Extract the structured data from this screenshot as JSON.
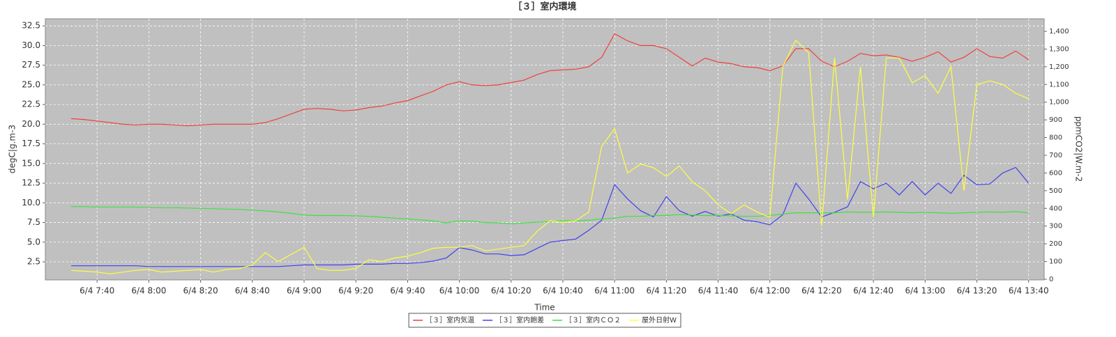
{
  "chart_data": {
    "type": "line",
    "title": "［３］室内環境",
    "xlabel": "Time",
    "ylabel": "degC|g.m-3",
    "y2label": "ppmCO2|W.m-2",
    "grid": true,
    "legend": "bottom",
    "x": [
      "6/4 7:30",
      "6/4 7:35",
      "6/4 7:40",
      "6/4 7:45",
      "6/4 7:50",
      "6/4 7:55",
      "6/4 8:00",
      "6/4 8:05",
      "6/4 8:10",
      "6/4 8:15",
      "6/4 8:20",
      "6/4 8:25",
      "6/4 8:30",
      "6/4 8:35",
      "6/4 8:40",
      "6/4 8:45",
      "6/4 8:50",
      "6/4 8:55",
      "6/4 9:00",
      "6/4 9:05",
      "6/4 9:10",
      "6/4 9:15",
      "6/4 9:20",
      "6/4 9:25",
      "6/4 9:30",
      "6/4 9:35",
      "6/4 9:40",
      "6/4 9:45",
      "6/4 9:50",
      "6/4 9:55",
      "6/4 10:00",
      "6/4 10:05",
      "6/4 10:10",
      "6/4 10:15",
      "6/4 10:20",
      "6/4 10:25",
      "6/4 10:30",
      "6/4 10:35",
      "6/4 10:40",
      "6/4 10:45",
      "6/4 10:50",
      "6/4 10:55",
      "6/4 11:00",
      "6/4 11:05",
      "6/4 11:10",
      "6/4 11:15",
      "6/4 11:20",
      "6/4 11:25",
      "6/4 11:30",
      "6/4 11:35",
      "6/4 11:40",
      "6/4 11:45",
      "6/4 11:50",
      "6/4 11:55",
      "6/4 12:00",
      "6/4 12:05",
      "6/4 12:10",
      "6/4 12:15",
      "6/4 12:20",
      "6/4 12:25",
      "6/4 12:30",
      "6/4 12:35",
      "6/4 12:40",
      "6/4 12:45",
      "6/4 12:50",
      "6/4 12:55",
      "6/4 13:00",
      "6/4 13:05",
      "6/4 13:10",
      "6/4 13:15",
      "6/4 13:20",
      "6/4 13:25",
      "6/4 13:30",
      "6/4 13:35",
      "6/4 13:40"
    ],
    "xlim": [
      "6/4 7:20",
      "6/4 13:46"
    ],
    "xticks": [
      "6/4 7:40",
      "6/4 8:00",
      "6/4 8:20",
      "6/4 8:40",
      "6/4 9:00",
      "6/4 9:20",
      "6/4 9:40",
      "6/4 10:00",
      "6/4 10:20",
      "6/4 10:40",
      "6/4 11:00",
      "6/4 11:20",
      "6/4 11:40",
      "6/4 12:00",
      "6/4 12:20",
      "6/4 12:40",
      "6/4 13:00",
      "6/4 13:20",
      "6/4 13:40"
    ],
    "ylim": [
      0.2,
      33.4
    ],
    "yticks": [
      2.5,
      {
        "value": 5,
        "label": "5.0"
      },
      7.5,
      {
        "value": 10,
        "label": "10.0"
      },
      12.5,
      {
        "value": 15,
        "label": "15.0"
      },
      17.5,
      {
        "value": 20,
        "label": "20.0"
      },
      22.5,
      {
        "value": 25,
        "label": "25.0"
      },
      27.5,
      {
        "value": 30,
        "label": "30.0"
      },
      32.5
    ],
    "y2lim": [
      -4,
      1471
    ],
    "y2ticks": [
      0,
      100,
      200,
      300,
      400,
      500,
      600,
      700,
      800,
      900,
      {
        "value": 1000,
        "label": "1,000"
      },
      {
        "value": 1100,
        "label": "1,100"
      },
      {
        "value": 1200,
        "label": "1,200"
      },
      {
        "value": 1300,
        "label": "1,300"
      },
      {
        "value": 1400,
        "label": "1,400"
      }
    ],
    "series": [
      {
        "name": "［３］室内気温",
        "color": "#f04040",
        "values": [
          20.7,
          20.6,
          20.4,
          20.2,
          20.0,
          19.9,
          20.0,
          20.0,
          19.9,
          19.8,
          19.9,
          20.0,
          20.0,
          20.0,
          20.0,
          20.2,
          20.7,
          21.3,
          21.9,
          22.0,
          21.9,
          21.7,
          21.8,
          22.1,
          22.3,
          22.7,
          23.0,
          23.6,
          24.2,
          25.0,
          25.4,
          25.0,
          24.9,
          25.0,
          25.3,
          25.6,
          26.3,
          26.8,
          26.9,
          27.0,
          27.3,
          28.5,
          31.5,
          30.6,
          30.0,
          30.0,
          29.6,
          28.5,
          27.4,
          28.4,
          27.9,
          27.7,
          27.3,
          27.2,
          26.8,
          27.4,
          29.6,
          29.6,
          28.0,
          27.3,
          28.0,
          29.0,
          28.7,
          28.8,
          28.5,
          28.0,
          28.5,
          29.2,
          27.9,
          28.5,
          29.6,
          28.6,
          28.4,
          29.3,
          28.2
        ]
      },
      {
        "name": "［３］室内飽差",
        "color": "#4040f0",
        "values": [
          2.0,
          2.0,
          2.0,
          2.0,
          2.0,
          2.0,
          1.9,
          1.9,
          1.9,
          1.9,
          1.9,
          1.9,
          1.9,
          1.9,
          1.9,
          1.9,
          1.9,
          2.0,
          2.1,
          2.1,
          2.1,
          2.1,
          2.2,
          2.2,
          2.2,
          2.3,
          2.3,
          2.4,
          2.6,
          3.0,
          4.3,
          4.0,
          3.5,
          3.5,
          3.3,
          3.4,
          4.2,
          5.0,
          5.2,
          5.4,
          6.5,
          7.8,
          12.3,
          10.5,
          9.0,
          8.2,
          10.8,
          9.0,
          8.3,
          8.9,
          8.3,
          8.6,
          7.8,
          7.6,
          7.2,
          8.5,
          12.5,
          10.5,
          8.2,
          8.8,
          9.5,
          12.7,
          11.8,
          12.5,
          11.0,
          12.7,
          11.0,
          12.5,
          11.2,
          13.5,
          12.3,
          12.4,
          13.8,
          14.5,
          12.5
        ]
      },
      {
        "name": "［３］室内ＣＯ２",
        "color": "#40e040",
        "axis": "y2",
        "values": [
          410,
          410,
          408,
          408,
          408,
          408,
          406,
          404,
          404,
          402,
          400,
          398,
          396,
          394,
          390,
          386,
          380,
          372,
          362,
          360,
          360,
          360,
          358,
          355,
          350,
          345,
          340,
          335,
          330,
          318,
          330,
          328,
          320,
          318,
          312,
          318,
          322,
          325,
          330,
          330,
          334,
          340,
          345,
          355,
          355,
          360,
          360,
          365,
          362,
          360,
          360,
          358,
          355,
          355,
          360,
          368,
          375,
          375,
          375,
          375,
          380,
          378,
          378,
          380,
          378,
          375,
          378,
          375,
          372,
          375,
          378,
          380,
          378,
          382,
          375
        ]
      },
      {
        "name": "屋外日射W",
        "color": "#ffff40",
        "axis": "y2",
        "values": [
          50,
          45,
          40,
          30,
          40,
          50,
          55,
          40,
          45,
          50,
          55,
          40,
          55,
          60,
          80,
          150,
          100,
          140,
          180,
          60,
          50,
          50,
          60,
          110,
          100,
          120,
          130,
          150,
          175,
          180,
          180,
          190,
          160,
          170,
          180,
          190,
          270,
          330,
          320,
          330,
          380,
          750,
          850,
          600,
          650,
          630,
          580,
          640,
          550,
          500,
          420,
          370,
          420,
          380,
          350,
          1200,
          1350,
          1280,
          300,
          1250,
          450,
          1200,
          350,
          1250,
          1250,
          1110,
          1150,
          1050,
          1200,
          500,
          1100,
          1120,
          1100,
          1050,
          1020
        ]
      }
    ]
  }
}
